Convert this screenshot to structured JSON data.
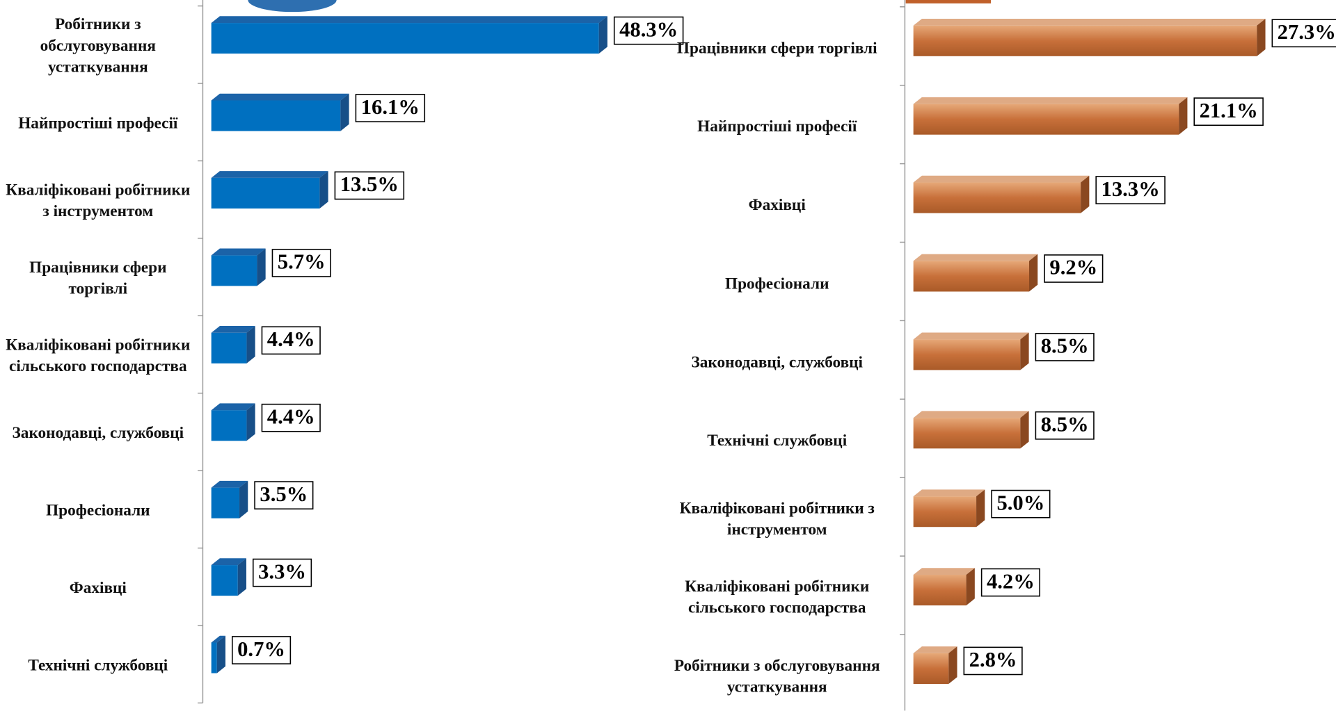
{
  "chart_data": [
    {
      "type": "bar",
      "orientation": "horizontal",
      "categories": [
        "Робітники з обслуговування устаткування",
        "Найпростіші професії",
        "Кваліфіковані робітники з інструментом",
        "Працівники сфери торгівлі",
        "Кваліфіковані робітники сільського господарства",
        "Законодавці, службовці",
        "Професіонали",
        "Фахівці",
        "Технічні службовці"
      ],
      "values": [
        48.3,
        16.1,
        13.5,
        5.7,
        4.4,
        4.4,
        3.5,
        3.3,
        0.7
      ],
      "value_labels": [
        "48.3%",
        "16.1%",
        "13.5%",
        "5.7%",
        "4.4%",
        "4.4%",
        "3.5%",
        "3.3%",
        "0.7%"
      ],
      "color": "#0070c0",
      "xlim": [
        0,
        55
      ]
    },
    {
      "type": "bar",
      "orientation": "horizontal",
      "categories": [
        "Працівники сфери торгівлі",
        "Найпростіші професії",
        "Фахівці",
        "Професіонали",
        "Законодавці, службовці",
        "Технічні службовці",
        "Кваліфіковані робітники з інструментом",
        "Кваліфіковані робітники сільського господарства",
        "Робітники з обслуговування устаткування"
      ],
      "values": [
        27.3,
        21.1,
        13.3,
        9.2,
        8.5,
        8.5,
        5.0,
        4.2,
        2.8
      ],
      "value_labels": [
        "27.3%",
        "21.1%",
        "13.3%",
        "9.2%",
        "8.5%",
        "8.5%",
        "5.0%",
        "4.2%",
        "2.8%"
      ],
      "color": "#c87137",
      "xlim": [
        0,
        30
      ]
    }
  ]
}
